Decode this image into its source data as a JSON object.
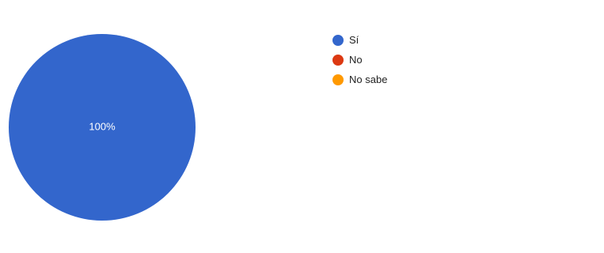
{
  "chart_data": {
    "type": "pie",
    "categories": [
      "Sí",
      "No",
      "No sabe"
    ],
    "values": [
      100,
      0,
      0
    ],
    "colors": [
      "#3366cc",
      "#dc3912",
      "#ff9900"
    ],
    "slice_labels": [
      "100%",
      "",
      ""
    ],
    "legend_position": "right"
  }
}
